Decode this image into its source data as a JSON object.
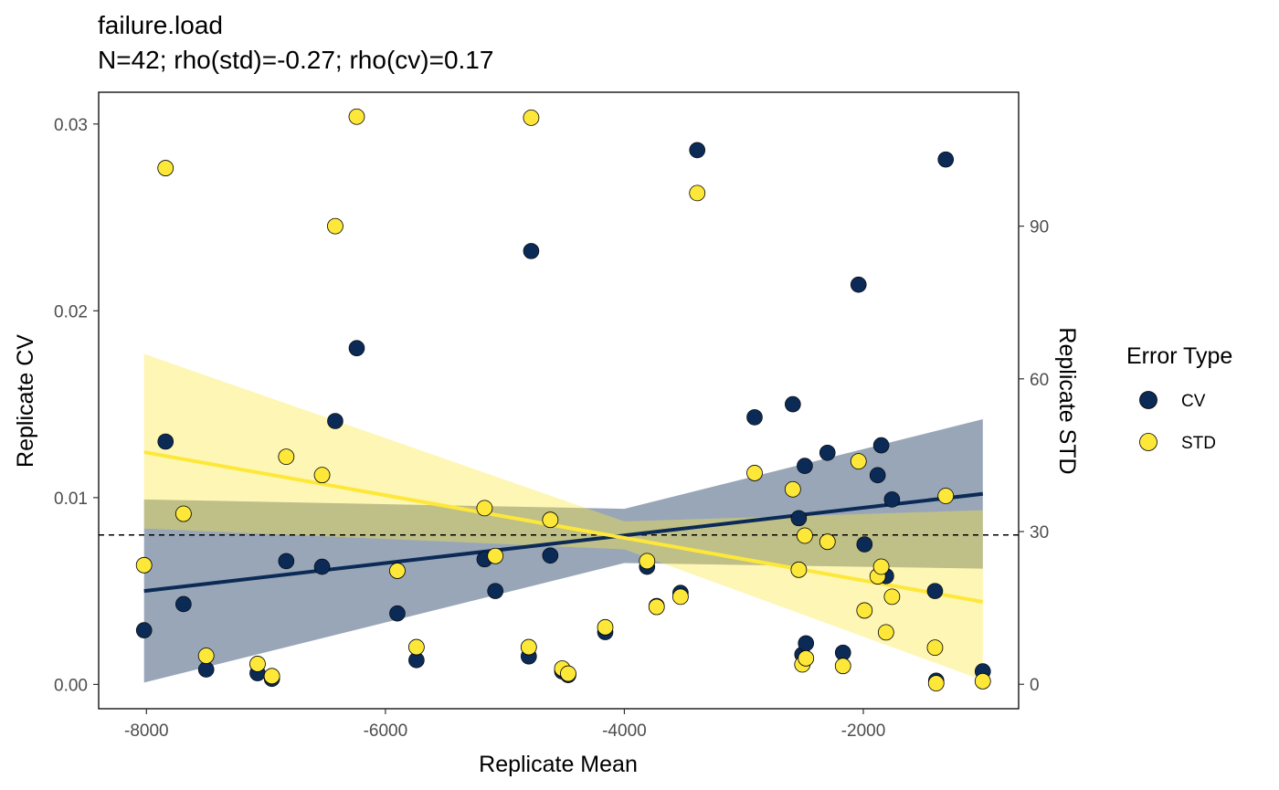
{
  "chart_data": {
    "type": "scatter",
    "title": "failure.load",
    "subtitle": "N=42; rho(std)=-0.27; rho(cv)=0.17",
    "xlabel": "Replicate Mean",
    "ylabel": "Replicate CV",
    "ylabel_right": "Replicate STD",
    "xlim": [
      -8400,
      -700
    ],
    "ylim": [
      -0.0013,
      0.0317
    ],
    "ylim_right": [
      -4.8,
      116.3
    ],
    "x_ticks": [
      -8000,
      -6000,
      -4000,
      -2000
    ],
    "y_ticks": [
      0.0,
      0.01,
      0.02,
      0.03
    ],
    "y_tick_labels": [
      "0.00",
      "0.01",
      "0.02",
      "0.03"
    ],
    "y_right_ticks": [
      0,
      30,
      60,
      90
    ],
    "hline": 0.008,
    "grid": false,
    "legend": {
      "title": "Error Type",
      "position": "right",
      "entries": [
        {
          "name": "CV",
          "color": "#0b2a55"
        },
        {
          "name": "STD",
          "color": "#fde83a"
        }
      ]
    },
    "series": [
      {
        "name": "CV",
        "color": "#0b2a55",
        "fit": {
          "x": [
            -8020,
            -1000
          ],
          "y": [
            0.005,
            0.0102
          ]
        },
        "band": {
          "x": [
            -8020,
            -4000,
            -1000
          ],
          "lower": [
            0.0001,
            0.0065,
            0.0062
          ],
          "upper": [
            0.0099,
            0.0094,
            0.0142
          ]
        },
        "x": [
          -8020,
          -7840,
          -7690,
          -7500,
          -7070,
          -6950,
          -6830,
          -6530,
          -6420,
          -6240,
          -5900,
          -5740,
          -5170,
          -5080,
          -4800,
          -4780,
          -4620,
          -4520,
          -4470,
          -4160,
          -3810,
          -3730,
          -3530,
          -3390,
          -2910,
          -2590,
          -2540,
          -2510,
          -2490,
          -2480,
          -2300,
          -2170,
          -2040,
          -1990,
          -1880,
          -1850,
          -1810,
          -1760,
          -1400,
          -1390,
          -1310,
          -1000
        ],
        "y": [
          0.0029,
          0.013,
          0.0043,
          0.0008,
          0.0006,
          0.0003,
          0.0066,
          0.0063,
          0.0141,
          0.018,
          0.0038,
          0.0013,
          0.0067,
          0.005,
          0.0015,
          0.0232,
          0.0069,
          0.0007,
          0.0005,
          0.0028,
          0.0063,
          0.0042,
          0.0049,
          0.0286,
          0.0143,
          0.015,
          0.0089,
          0.0016,
          0.0117,
          0.0022,
          0.0124,
          0.0017,
          0.0214,
          0.0075,
          0.0112,
          0.0128,
          0.0058,
          0.0099,
          0.005,
          0.0002,
          0.0281,
          0.0007
        ]
      },
      {
        "name": "STD",
        "color": "#fde83a",
        "axis": "right",
        "fit": {
          "x": [
            -8020,
            -1000
          ],
          "y": [
            45.6,
            16.2
          ]
        },
        "band": {
          "x": [
            -8020,
            -4000,
            -1000
          ],
          "lower": [
            30.6,
            26.5,
            0.8
          ],
          "upper": [
            64.9,
            32.0,
            34.2
          ]
        },
        "x": [
          -8020,
          -7840,
          -7690,
          -7500,
          -7070,
          -6950,
          -6830,
          -6530,
          -6420,
          -6240,
          -5900,
          -5740,
          -5170,
          -5080,
          -4800,
          -4780,
          -4620,
          -4520,
          -4470,
          -4160,
          -3810,
          -3730,
          -3530,
          -3390,
          -2910,
          -2590,
          -2540,
          -2510,
          -2490,
          -2480,
          -2300,
          -2170,
          -2040,
          -1990,
          -1880,
          -1850,
          -1810,
          -1760,
          -1400,
          -1390,
          -1310,
          -1000
        ],
        "y": [
          23.4,
          101.4,
          33.5,
          5.6,
          4.0,
          1.6,
          44.7,
          41.1,
          90.0,
          111.5,
          22.3,
          7.3,
          34.6,
          25.2,
          7.3,
          111.3,
          32.3,
          3.1,
          2.1,
          11.2,
          24.2,
          15.2,
          17.2,
          96.5,
          41.5,
          38.3,
          22.5,
          3.9,
          29.2,
          5.1,
          28.0,
          3.6,
          43.8,
          14.5,
          21.2,
          23.1,
          10.2,
          17.2,
          7.2,
          0.2,
          37.0,
          0.6
        ]
      }
    ]
  }
}
